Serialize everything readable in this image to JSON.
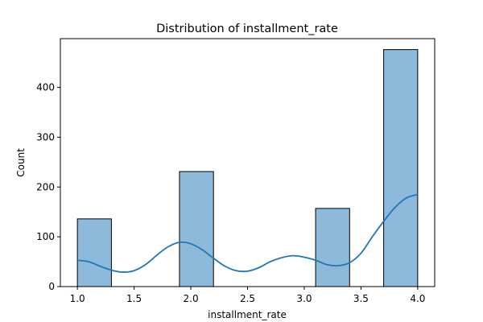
{
  "chart_data": {
    "type": "bar",
    "title": "Distribution of installment_rate",
    "xlabel": "installment_rate",
    "ylabel": "Count",
    "xlim": [
      0.85,
      4.15
    ],
    "ylim": [
      0,
      498
    ],
    "xticks": [
      "1.0",
      "1.5",
      "2.0",
      "2.5",
      "3.0",
      "3.5",
      "4.0"
    ],
    "yticks": [
      "0",
      "100",
      "200",
      "300",
      "400"
    ],
    "bins": [
      {
        "x0": 1.0,
        "x1": 1.3,
        "count": 136
      },
      {
        "x0": 1.3,
        "x1": 1.6,
        "count": 0
      },
      {
        "x0": 1.6,
        "x1": 1.9,
        "count": 0
      },
      {
        "x0": 1.9,
        "x1": 2.2,
        "count": 231
      },
      {
        "x0": 2.2,
        "x1": 2.5,
        "count": 0
      },
      {
        "x0": 2.5,
        "x1": 2.8,
        "count": 0
      },
      {
        "x0": 2.8,
        "x1": 3.1,
        "count": 0
      },
      {
        "x0": 3.1,
        "x1": 3.4,
        "count": 157
      },
      {
        "x0": 3.4,
        "x1": 3.7,
        "count": 0
      },
      {
        "x0": 3.7,
        "x1": 4.0,
        "count": 476
      }
    ],
    "kde": {
      "x": [
        1.0,
        1.1,
        1.2,
        1.3,
        1.4,
        1.5,
        1.6,
        1.7,
        1.8,
        1.9,
        2.0,
        2.1,
        2.2,
        2.3,
        2.4,
        2.5,
        2.6,
        2.7,
        2.8,
        2.9,
        3.0,
        3.1,
        3.2,
        3.3,
        3.4,
        3.5,
        3.6,
        3.7,
        3.8,
        3.9,
        4.0
      ],
      "y": [
        53,
        50,
        41,
        33,
        29,
        32,
        44,
        63,
        80,
        89,
        86,
        74,
        57,
        41,
        32,
        31,
        38,
        50,
        58,
        62,
        59,
        53,
        44,
        42,
        48,
        67,
        100,
        131,
        159,
        178,
        185
      ]
    },
    "bar_color": "#8db9db",
    "bar_edge_color": "#000000",
    "line_color": "#1f77b4",
    "grid": false,
    "legend": false
  }
}
